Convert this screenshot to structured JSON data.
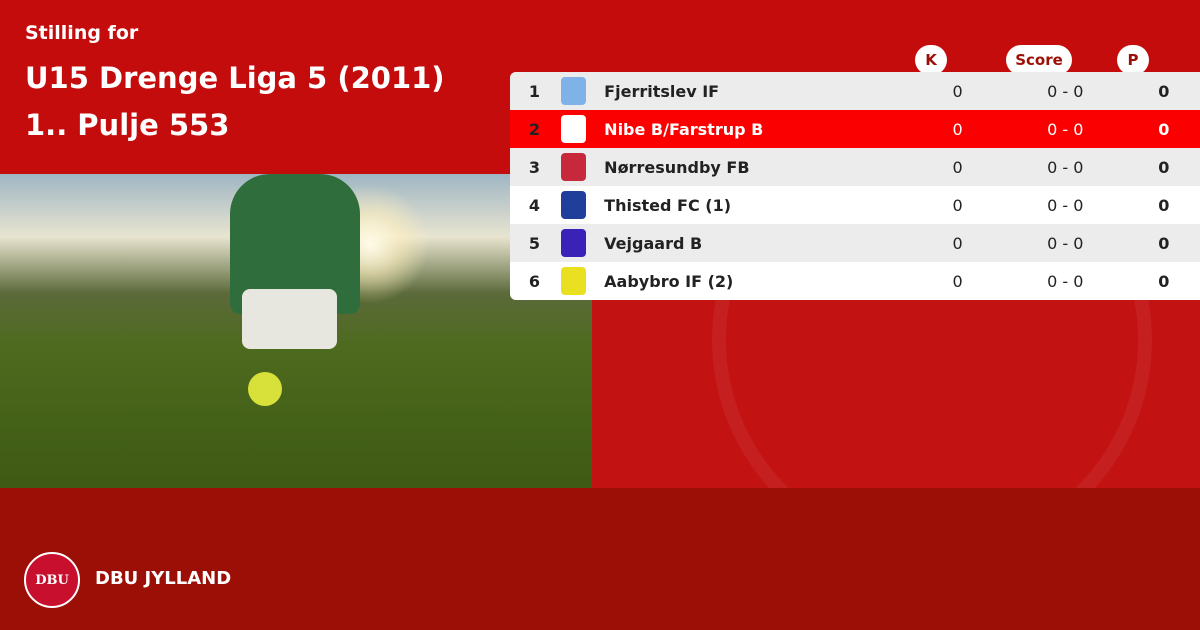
{
  "header": {
    "subtitle": "Stilling for",
    "title": "U15 Drenge Liga 5 (2011) 1.. Pulje 553"
  },
  "columns": {
    "k": "K",
    "score": "Score",
    "p": "P"
  },
  "rows": [
    {
      "pos": "1",
      "team": "Fjerritslev IF",
      "k": "0",
      "score": "0 - 0",
      "p": "0",
      "crest": "#7fb2e6"
    },
    {
      "pos": "2",
      "team": "Nibe B/Farstrup B",
      "k": "0",
      "score": "0 - 0",
      "p": "0",
      "crest": "#ffffff",
      "highlighted": true
    },
    {
      "pos": "3",
      "team": "Nørresundby FB",
      "k": "0",
      "score": "0 - 0",
      "p": "0",
      "crest": "#c8283c"
    },
    {
      "pos": "4",
      "team": "Thisted FC (1)",
      "k": "0",
      "score": "0 - 0",
      "p": "0",
      "crest": "#1f3f9a"
    },
    {
      "pos": "5",
      "team": "Vejgaard B",
      "k": "0",
      "score": "0 - 0",
      "p": "0",
      "crest": "#3a22b8"
    },
    {
      "pos": "6",
      "team": "Aabybro IF (2)",
      "k": "0",
      "score": "0 - 0",
      "p": "0",
      "crest": "#e8e020"
    }
  ],
  "footer": {
    "brand": "DBU JYLLAND",
    "logo_text": "DBU"
  },
  "colors": {
    "background": "#c40c0c",
    "footer": "#9c0f06",
    "highlight": "#fa0000"
  }
}
